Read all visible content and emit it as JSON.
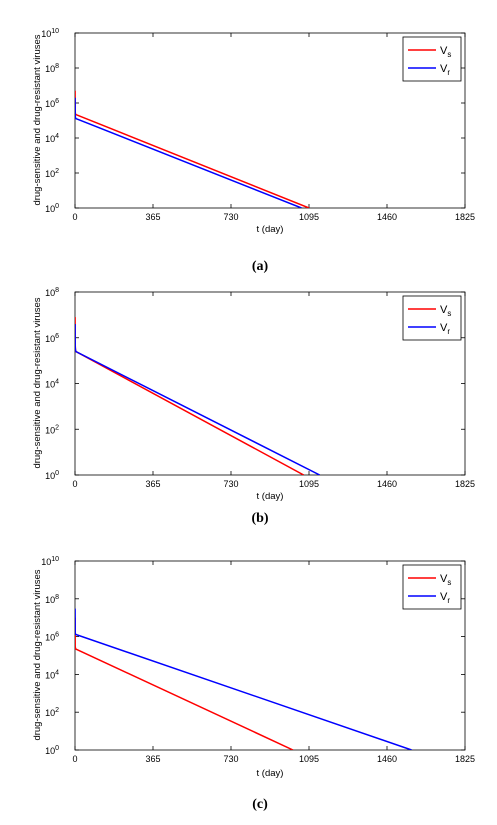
{
  "chart_data": [
    {
      "type": "line",
      "panel_label": "(a)",
      "xlabel": "t (day)",
      "ylabel": "drug-sensitive and drug-resistant viruses",
      "x_ticks": [
        0,
        365,
        730,
        1095,
        1460,
        1825
      ],
      "y_scale": "log",
      "xlim": [
        0,
        1825
      ],
      "ylim": [
        1,
        10000000000
      ],
      "y_ticks": [
        {
          "value": 1,
          "base": "10",
          "exp": "0"
        },
        {
          "value": 100,
          "base": "10",
          "exp": "2"
        },
        {
          "value": 10000,
          "base": "10",
          "exp": "4"
        },
        {
          "value": 1000000,
          "base": "10",
          "exp": "6"
        },
        {
          "value": 100000000,
          "base": "10",
          "exp": "8"
        },
        {
          "value": 10000000000,
          "base": "10",
          "exp": "10"
        }
      ],
      "grid": false,
      "legend_position": "top-right",
      "series": [
        {
          "name_main": "V",
          "name_sub": "s",
          "color": "#ff0000",
          "x": [
            0,
            0.5,
            1,
            2,
            4,
            1095
          ],
          "y": [
            500000,
            5000000,
            300000,
            250000,
            220000,
            1
          ]
        },
        {
          "name_main": "V",
          "name_sub": "r",
          "color": "#0000ff",
          "x": [
            0,
            0.5,
            1,
            2,
            4,
            1060
          ],
          "y": [
            200000,
            2000000,
            180000,
            150000,
            130000,
            1
          ]
        }
      ]
    },
    {
      "type": "line",
      "panel_label": "(b)",
      "xlabel": "t (day)",
      "ylabel": "drug-sensitive and drug-resistant viruses",
      "x_ticks": [
        0,
        365,
        730,
        1095,
        1460,
        1825
      ],
      "y_scale": "log",
      "xlim": [
        0,
        1825
      ],
      "ylim": [
        1,
        100000000
      ],
      "y_ticks": [
        {
          "value": 1,
          "base": "10",
          "exp": "0"
        },
        {
          "value": 100,
          "base": "10",
          "exp": "2"
        },
        {
          "value": 10000,
          "base": "10",
          "exp": "4"
        },
        {
          "value": 1000000,
          "base": "10",
          "exp": "6"
        },
        {
          "value": 100000000,
          "base": "10",
          "exp": "8"
        }
      ],
      "grid": false,
      "legend_position": "top-right",
      "series": [
        {
          "name_main": "V",
          "name_sub": "s",
          "color": "#ff0000",
          "x": [
            0,
            0.5,
            1,
            2,
            4,
            1070
          ],
          "y": [
            2000000,
            8000000,
            500000,
            300000,
            250000,
            1
          ]
        },
        {
          "name_main": "V",
          "name_sub": "r",
          "color": "#0000ff",
          "x": [
            0,
            0.5,
            1,
            2,
            4,
            1145
          ],
          "y": [
            1000000,
            4000000,
            400000,
            300000,
            250000,
            1
          ]
        }
      ]
    },
    {
      "type": "line",
      "panel_label": "(c)",
      "xlabel": "t (day)",
      "ylabel": "drug-sensitive and drug-resistant viruses",
      "x_ticks": [
        0,
        365,
        730,
        1095,
        1460,
        1825
      ],
      "y_scale": "log",
      "xlim": [
        0,
        1825
      ],
      "ylim": [
        1,
        10000000000
      ],
      "y_ticks": [
        {
          "value": 1,
          "base": "10",
          "exp": "0"
        },
        {
          "value": 100,
          "base": "10",
          "exp": "2"
        },
        {
          "value": 10000,
          "base": "10",
          "exp": "4"
        },
        {
          "value": 1000000,
          "base": "10",
          "exp": "6"
        },
        {
          "value": 100000000,
          "base": "10",
          "exp": "8"
        },
        {
          "value": 10000000000,
          "base": "10",
          "exp": "10"
        }
      ],
      "grid": false,
      "legend_position": "top-right",
      "series": [
        {
          "name_main": "V",
          "name_sub": "s",
          "color": "#ff0000",
          "x": [
            0,
            0.5,
            1,
            2,
            4,
            1020
          ],
          "y": [
            1000000,
            10000000,
            300000,
            250000,
            220000,
            1
          ]
        },
        {
          "name_main": "V",
          "name_sub": "r",
          "color": "#0000ff",
          "x": [
            0,
            0.5,
            1,
            2,
            4,
            1575
          ],
          "y": [
            3000000,
            30000000,
            1500000,
            1400000,
            1300000,
            1
          ]
        }
      ]
    }
  ]
}
